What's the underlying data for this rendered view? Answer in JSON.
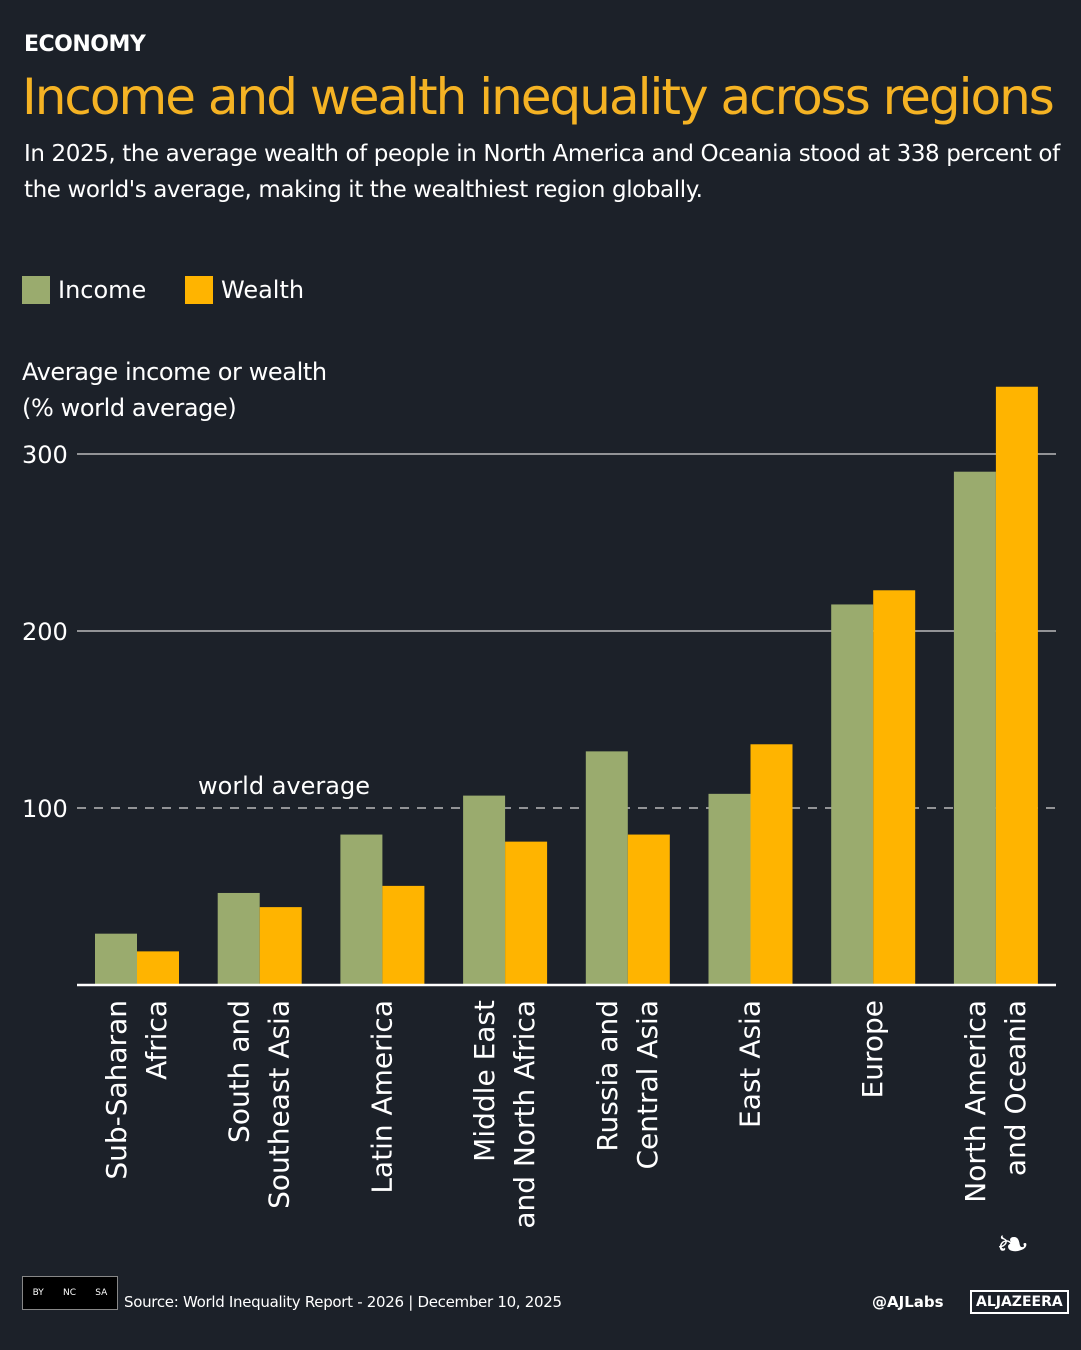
{
  "header": {
    "section": "ECONOMY",
    "title": "Income and wealth inequality across regions",
    "subtitle": "In 2025, the average wealth of people in North America and Oceania stood at 338 percent of the world's average, making it the wealthiest region globally."
  },
  "colors": {
    "background": "#1c2129",
    "title": "#f5b324",
    "income": "#9aab6e",
    "wealth": "#ffb400"
  },
  "chart_data": {
    "type": "bar",
    "ylabel_line1": "Average income or wealth",
    "ylabel_line2": "(% world average)",
    "ylim": [
      0,
      340
    ],
    "yticks": [
      100,
      200,
      300
    ],
    "grid": true,
    "legend_placement": "top-left",
    "reference_line": {
      "value": 100,
      "label": "world average"
    },
    "categories": [
      [
        "Sub-Saharan",
        "Africa"
      ],
      [
        "South and",
        "Southeast Asia"
      ],
      [
        "Latin America",
        ""
      ],
      [
        "Middle East",
        "and North Africa"
      ],
      [
        "Russia and",
        "Central Asia"
      ],
      [
        "East Asia",
        ""
      ],
      [
        "Europe",
        ""
      ],
      [
        "North America",
        "and Oceania"
      ]
    ],
    "series": [
      {
        "name": "Income",
        "values": [
          29,
          52,
          85,
          107,
          132,
          108,
          215,
          290
        ]
      },
      {
        "name": "Wealth",
        "values": [
          19,
          44,
          56,
          81,
          85,
          136,
          223,
          338
        ]
      }
    ]
  },
  "footer": {
    "source": "Source: World Inequality Report - 2026  |  December 10, 2025",
    "handle": "@AJLabs",
    "logo": "ALJAZEERA",
    "license": [
      "BY",
      "NC",
      "SA"
    ]
  }
}
